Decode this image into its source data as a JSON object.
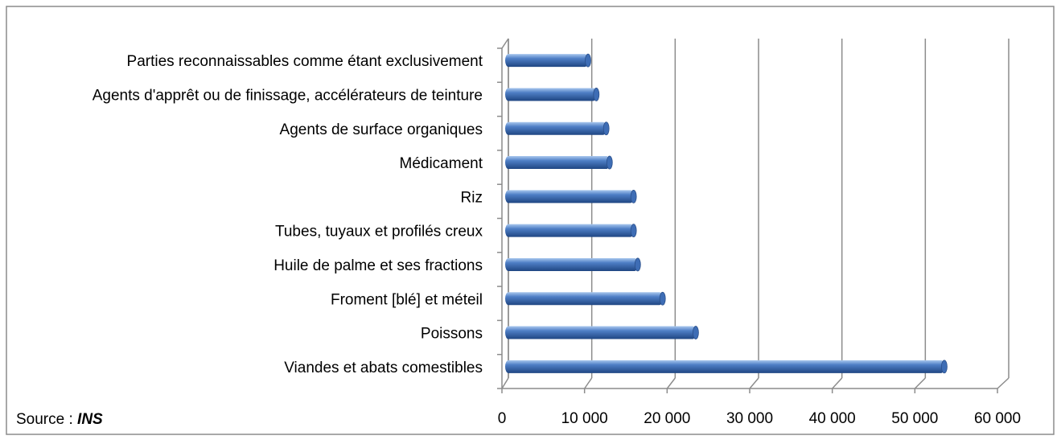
{
  "chart_data": {
    "type": "bar",
    "orientation": "horizontal",
    "categories": [
      "Viandes et abats comestibles",
      "Poissons",
      "Froment [blé] et méteil",
      "Huile de palme et ses fractions",
      "Tubes, tuyaux et profilés creux",
      "Riz",
      "Médicament",
      "Agents de surface organiques",
      "Agents d'apprêt ou de finissage, accélérateurs de teinture",
      "Parties reconnaissables comme étant exclusivement"
    ],
    "values": [
      53000,
      23000,
      19000,
      16000,
      15500,
      15500,
      12600,
      12200,
      11000,
      10000
    ],
    "color": "#3e6db5",
    "xlim": [
      0,
      60000
    ],
    "xticks": [
      0,
      {
        "value": 10000,
        "label": "10 000"
      },
      {
        "value": 20000,
        "label": "20 000"
      },
      {
        "value": 30000,
        "label": "30 000"
      },
      {
        "value": 40000,
        "label": "40 000"
      },
      {
        "value": 50000,
        "label": "50 000"
      },
      {
        "value": 60000,
        "label": "60 000"
      }
    ],
    "grid": true,
    "source_label": "Source :",
    "source": "INS"
  }
}
